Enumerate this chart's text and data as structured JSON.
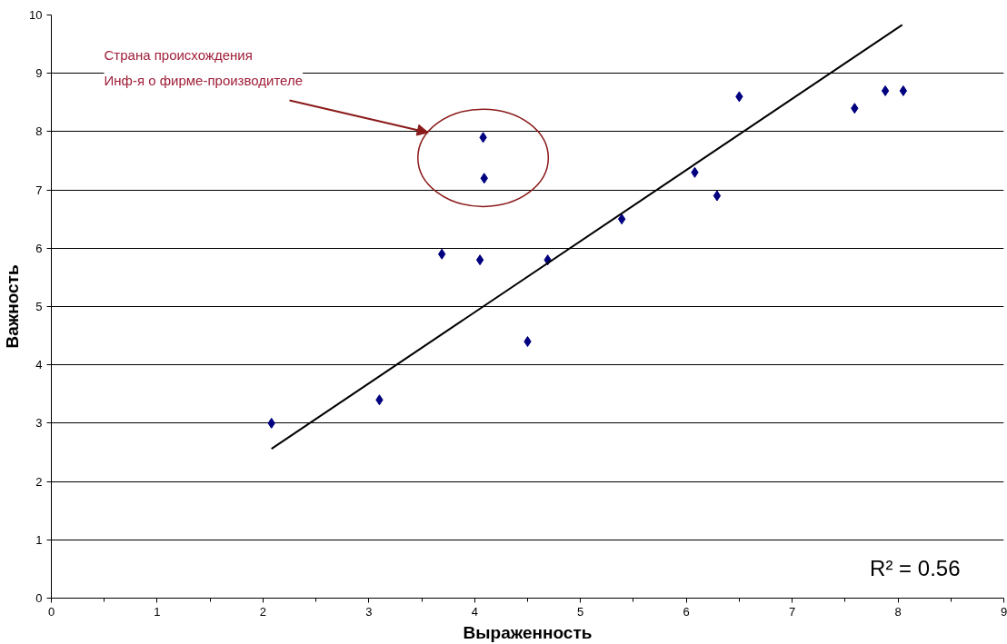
{
  "chart_data": {
    "type": "scatter",
    "xlabel": "Выраженность",
    "ylabel": "Важность",
    "xlim": [
      0,
      9
    ],
    "ylim": [
      0,
      10
    ],
    "xticks": [
      0,
      1,
      2,
      3,
      4,
      5,
      6,
      7,
      8,
      9
    ],
    "yticks": [
      0,
      1,
      2,
      3,
      4,
      5,
      6,
      7,
      8,
      9,
      10
    ],
    "grid": "y",
    "marker": "diamond",
    "series": [
      {
        "color": "#000080",
        "x": [
          2.08,
          3.1,
          3.69,
          4.05,
          4.08,
          4.09,
          4.5,
          4.69,
          5.39,
          6.08,
          6.29,
          6.5,
          7.59,
          7.88,
          8.05
        ],
        "values": [
          3.0,
          3.4,
          5.9,
          5.8,
          7.9,
          7.2,
          4.4,
          5.8,
          6.5,
          7.3,
          6.9,
          8.6,
          8.4,
          8.7,
          8.7
        ]
      },
      {
        "type": "line",
        "marker": "none",
        "color": "#000000",
        "x": [
          2.08,
          8.04
        ],
        "values": [
          2.56,
          9.83
        ]
      }
    ],
    "annotations": [
      "Страна происхождения",
      "Инф-я о фирме-производителе",
      "R² = 0.56"
    ]
  }
}
